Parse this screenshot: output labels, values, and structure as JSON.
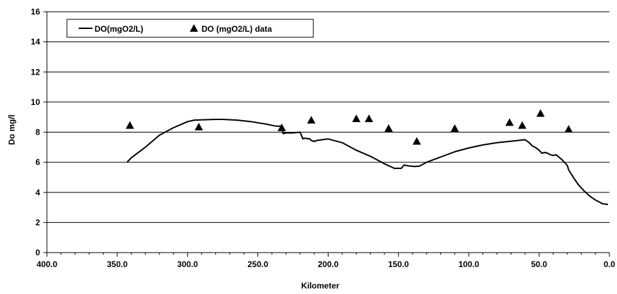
{
  "chart_data": {
    "type": "line",
    "xlabel": "Kilometer",
    "ylabel": "Do mg/l",
    "xlim": [
      400,
      0
    ],
    "ylim": [
      0,
      16
    ],
    "x_reversed": true,
    "x_ticks": [
      400,
      350,
      300,
      250,
      200,
      150,
      100,
      50,
      0
    ],
    "x_tick_labels": [
      "400.0",
      "350.0",
      "300.0",
      "250.0",
      "200.0",
      "150.0",
      "100.0",
      "50.0",
      "0.0"
    ],
    "y_ticks": [
      0,
      2,
      4,
      6,
      8,
      10,
      12,
      14,
      16
    ],
    "y_tick_labels": [
      "0",
      "2",
      "4",
      "6",
      "8",
      "10",
      "12",
      "14",
      "16"
    ],
    "grid": "horizontal",
    "legend_placement": "top-left",
    "series": [
      {
        "name": "DO(mgO2/L)",
        "kind": "line",
        "color": "#000000",
        "x": [
          343,
          340,
          330,
          320,
          310,
          300,
          295,
          280,
          275,
          265,
          255,
          245,
          237,
          233,
          232,
          230,
          225,
          220,
          218,
          217,
          213,
          212,
          210,
          208,
          200,
          190,
          180,
          170,
          160,
          153,
          150,
          148,
          146,
          144,
          142,
          138,
          135,
          130,
          120,
          110,
          100,
          90,
          80,
          70,
          60,
          57,
          55,
          52,
          50,
          48,
          46,
          44,
          42,
          40,
          38,
          36,
          34,
          32,
          30,
          29,
          27,
          25,
          22,
          18,
          14,
          10,
          7,
          5,
          3,
          1
        ],
        "y": [
          6.0,
          6.3,
          7.0,
          7.8,
          8.3,
          8.7,
          8.8,
          8.85,
          8.85,
          8.8,
          8.7,
          8.55,
          8.4,
          8.4,
          7.9,
          7.95,
          7.95,
          8.0,
          7.55,
          7.6,
          7.55,
          7.45,
          7.38,
          7.45,
          7.55,
          7.3,
          6.8,
          6.4,
          5.9,
          5.6,
          5.6,
          5.6,
          5.82,
          5.78,
          5.75,
          5.72,
          5.75,
          6.0,
          6.35,
          6.7,
          6.95,
          7.15,
          7.3,
          7.4,
          7.5,
          7.3,
          7.1,
          6.95,
          6.8,
          6.6,
          6.65,
          6.6,
          6.5,
          6.45,
          6.5,
          6.35,
          6.2,
          6.0,
          5.8,
          5.5,
          5.2,
          4.9,
          4.5,
          4.1,
          3.75,
          3.5,
          3.35,
          3.25,
          3.22,
          3.2
        ]
      },
      {
        "name": "DO (mgO2/L) data",
        "kind": "scatter",
        "marker": "triangle",
        "color": "#000000",
        "x": [
          341,
          292,
          233,
          212,
          180,
          171,
          157,
          137,
          110,
          71,
          62,
          49,
          29
        ],
        "y": [
          8.45,
          8.35,
          8.3,
          8.8,
          8.9,
          8.9,
          8.25,
          7.4,
          8.25,
          8.65,
          8.45,
          9.25,
          8.2
        ]
      }
    ]
  }
}
